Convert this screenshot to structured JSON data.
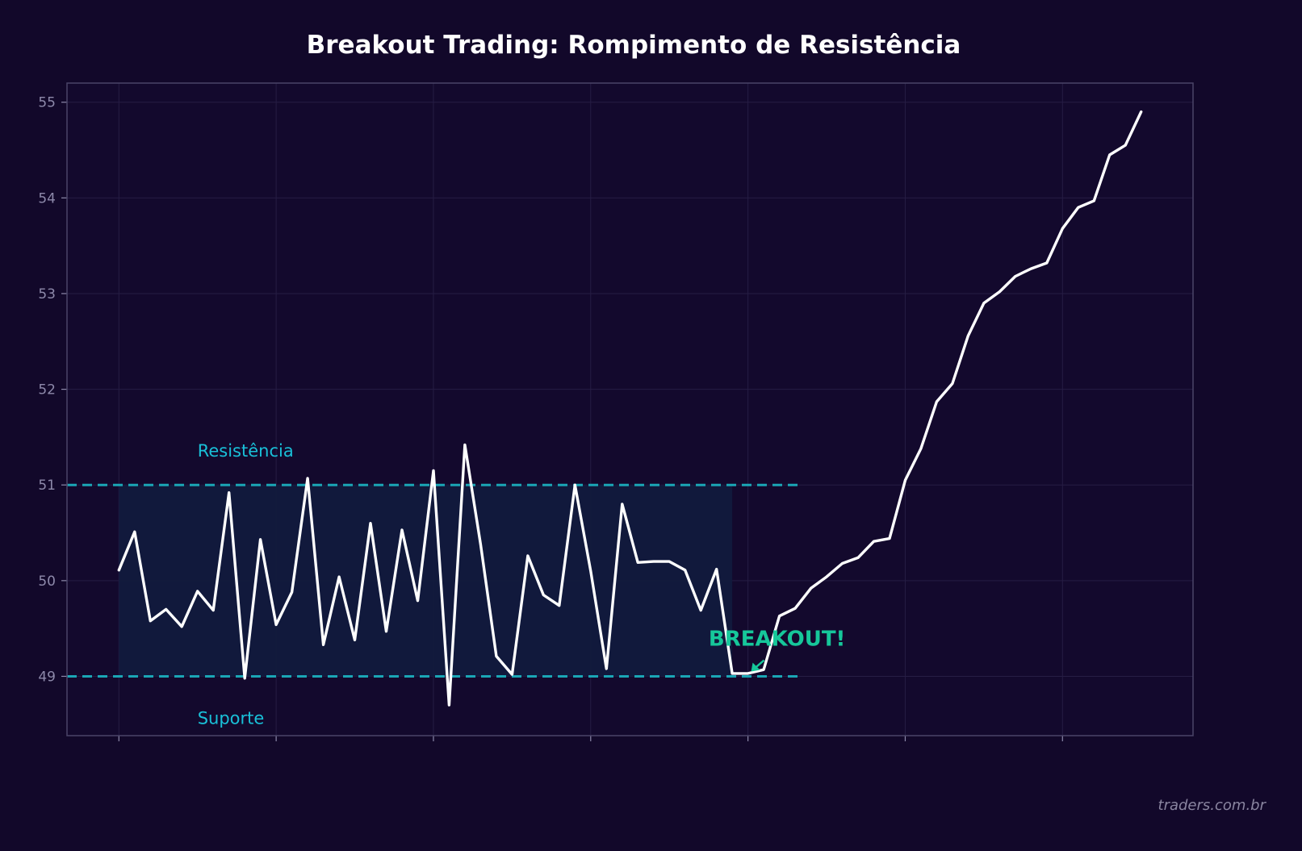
{
  "watermark": "traders.com.br",
  "colors": {
    "background": "#12082a",
    "plot_bg": "#13092d",
    "frame": "#4a4468",
    "grid": "#261d44",
    "tick_text": "#8d89aa",
    "price_line": "#ffffff",
    "level_line": "#1aa6b5",
    "level_label": "#19c0d8",
    "range_fill": "#111a3d",
    "breakout": "#16c79a"
  },
  "chart_data": {
    "type": "line",
    "title": "Breakout Trading: Rompimento de Resistência",
    "xlabel": "",
    "ylabel": "",
    "xlim": [
      -3.3,
      68.3
    ],
    "ylim": [
      48.38,
      55.2
    ],
    "yticks": [
      49,
      50,
      51,
      52,
      53,
      54,
      55
    ],
    "xticks": [
      0,
      10,
      20,
      30,
      40,
      50,
      60
    ],
    "show_x_tick_labels": false,
    "grid": true,
    "series": [
      {
        "values": [
          50.11,
          50.51,
          49.58,
          49.7,
          49.52,
          49.89,
          49.69,
          50.92,
          48.98,
          50.43,
          49.54,
          49.88,
          51.07,
          49.33,
          50.04,
          49.38,
          50.6,
          49.47,
          50.53,
          49.79,
          51.15,
          48.7,
          51.42,
          50.38,
          49.21,
          49.02,
          50.26,
          49.85,
          49.74,
          51.0,
          50.1,
          49.08,
          50.8,
          50.19,
          50.2,
          50.2,
          50.11,
          49.69,
          50.12,
          49.03,
          49.03,
          49.07,
          49.63,
          49.71,
          49.92,
          50.04,
          50.18,
          50.24,
          50.41,
          50.44,
          51.05,
          51.38,
          51.87,
          52.06,
          52.56,
          52.9,
          53.02,
          53.18,
          53.26,
          53.32,
          53.68,
          53.9,
          53.97,
          54.45,
          54.55,
          54.9
        ]
      }
    ],
    "levels": [
      {
        "label": "Resistência",
        "value": 51,
        "x_end": 43.2
      },
      {
        "label": "Suporte",
        "value": 49,
        "x_end": 43.2
      }
    ],
    "consolidation_range": {
      "x_start": 0,
      "x_end": 39,
      "y_low": 49,
      "y_high": 51
    },
    "annotation": {
      "text": "BREAKOUT!",
      "target_x": 40.2,
      "target_y": 49.05,
      "text_x": 37.5,
      "text_y": 49.32
    }
  }
}
